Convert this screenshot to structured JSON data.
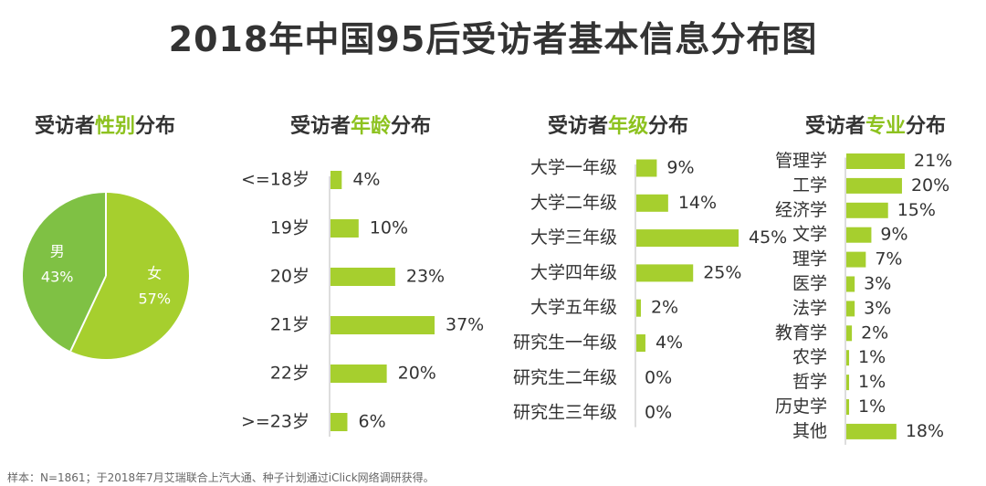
{
  "title": "2018年中国95后受访者基本信息分布图",
  "footnote": "样本：N=1861；于2018年7月艾瑞联合上汽大通、种子计划通过iClick网络调研获得。",
  "colors": {
    "bar": "#a6cf2e",
    "accent": "#8dc21f",
    "female": "#a6cf2e",
    "male": "#7fc144"
  },
  "subtitles": {
    "gender": {
      "pre": "受访者",
      "hl": "性别",
      "post": "分布"
    },
    "age": {
      "pre": "受访者",
      "hl": "年龄",
      "post": "分布"
    },
    "grade": {
      "pre": "受访者",
      "hl": "年级",
      "post": "分布"
    },
    "major": {
      "pre": "受访者",
      "hl": "专业",
      "post": "分布"
    }
  },
  "chart_data": [
    {
      "id": "gender",
      "type": "pie",
      "labels": [
        "男",
        "女"
      ],
      "values": [
        43,
        57
      ],
      "value_labels": [
        "43%",
        "57%"
      ]
    },
    {
      "id": "age",
      "type": "bar",
      "categories": [
        "<=18岁",
        "19岁",
        "20岁",
        "21岁",
        "22岁",
        ">=23岁"
      ],
      "values": [
        4,
        10,
        23,
        37,
        20,
        6
      ],
      "value_labels": [
        "4%",
        "10%",
        "23%",
        "37%",
        "20%",
        "6%"
      ]
    },
    {
      "id": "grade",
      "type": "bar",
      "categories": [
        "大学一年级",
        "大学二年级",
        "大学三年级",
        "大学四年级",
        "大学五年级",
        "研究生一年级",
        "研究生二年级",
        "研究生三年级"
      ],
      "values": [
        9,
        14,
        45,
        25,
        2,
        4,
        0,
        0
      ],
      "value_labels": [
        "9%",
        "14%",
        "45%",
        "25%",
        "2%",
        "4%",
        "0%",
        "0%"
      ]
    },
    {
      "id": "major",
      "type": "bar",
      "categories": [
        "管理学",
        "工学",
        "经济学",
        "文学",
        "理学",
        "医学",
        "法学",
        "教育学",
        "农学",
        "哲学",
        "历史学",
        "其他"
      ],
      "values": [
        21,
        20,
        15,
        9,
        7,
        3,
        3,
        2,
        1,
        1,
        1,
        18
      ],
      "value_labels": [
        "21%",
        "20%",
        "15%",
        "9%",
        "7%",
        "3%",
        "3%",
        "2%",
        "1%",
        "1%",
        "1%",
        "18%"
      ]
    }
  ]
}
